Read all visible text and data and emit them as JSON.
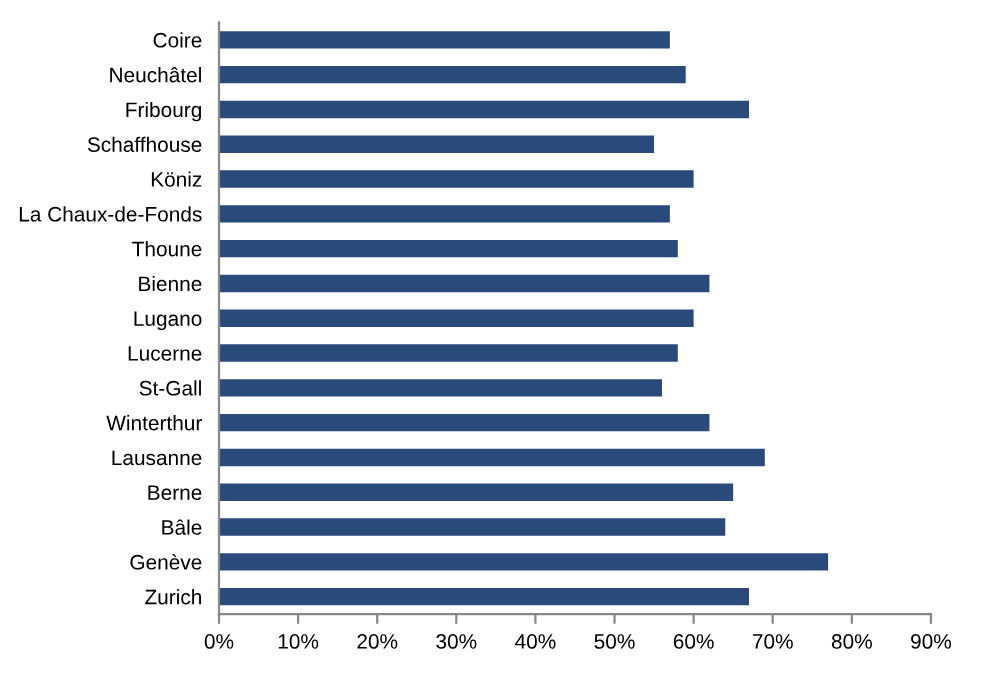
{
  "chart_data": {
    "type": "bar",
    "orientation": "horizontal",
    "categories": [
      "Coire",
      "Neuchâtel",
      "Fribourg",
      "Schaffhouse",
      "Köniz",
      "La Chaux-de-Fonds",
      "Thoune",
      "Bienne",
      "Lugano",
      "Lucerne",
      "St-Gall",
      "Winterthur",
      "Lausanne",
      "Berne",
      "Bâle",
      "Genève",
      "Zurich"
    ],
    "values": [
      57,
      59,
      67,
      55,
      60,
      57,
      58,
      62,
      60,
      58,
      56,
      62,
      69,
      65,
      64,
      77,
      67
    ],
    "color": "#2b4a7c",
    "xlim": [
      0,
      90
    ],
    "xticks": [
      {
        "value": 0,
        "label": "0%"
      },
      {
        "value": 10,
        "label": "10%"
      },
      {
        "value": 20,
        "label": "20%"
      },
      {
        "value": 30,
        "label": "30%"
      },
      {
        "value": 40,
        "label": "40%"
      },
      {
        "value": 50,
        "label": "50%"
      },
      {
        "value": 60,
        "label": "60%"
      },
      {
        "value": 70,
        "label": "70%"
      },
      {
        "value": 80,
        "label": "80%"
      },
      {
        "value": 90,
        "label": "90%"
      }
    ],
    "grid": false,
    "legend": false
  }
}
